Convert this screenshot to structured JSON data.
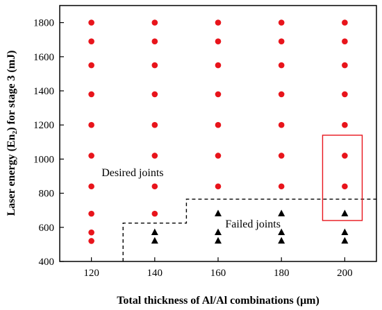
{
  "chart_data": {
    "type": "scatter",
    "xlabel": "Total thickness of Al/Al combinations (μm)",
    "ylabel": "Laser energy (En₂) for stage 3 (mJ)",
    "xlim": [
      110,
      210
    ],
    "ylim": [
      400,
      1900
    ],
    "xticks": [
      120,
      140,
      160,
      180,
      200
    ],
    "yticks": [
      400,
      600,
      800,
      1000,
      1200,
      1400,
      1600,
      1800
    ],
    "grid": false,
    "series": [
      {
        "marker": "circle",
        "color": "#e8141b",
        "points": [
          [
            120,
            1800
          ],
          [
            120,
            1690
          ],
          [
            120,
            1550
          ],
          [
            120,
            1380
          ],
          [
            120,
            1200
          ],
          [
            120,
            1020
          ],
          [
            120,
            840
          ],
          [
            120,
            680
          ],
          [
            120,
            570
          ],
          [
            120,
            520
          ],
          [
            140,
            1800
          ],
          [
            140,
            1690
          ],
          [
            140,
            1550
          ],
          [
            140,
            1380
          ],
          [
            140,
            1200
          ],
          [
            140,
            1020
          ],
          [
            140,
            840
          ],
          [
            140,
            680
          ],
          [
            160,
            1800
          ],
          [
            160,
            1690
          ],
          [
            160,
            1550
          ],
          [
            160,
            1380
          ],
          [
            160,
            1200
          ],
          [
            160,
            1020
          ],
          [
            160,
            840
          ],
          [
            180,
            1800
          ],
          [
            180,
            1690
          ],
          [
            180,
            1550
          ],
          [
            180,
            1380
          ],
          [
            180,
            1200
          ],
          [
            180,
            1020
          ],
          [
            180,
            840
          ],
          [
            200,
            1800
          ],
          [
            200,
            1690
          ],
          [
            200,
            1550
          ],
          [
            200,
            1380
          ],
          [
            200,
            1200
          ],
          [
            200,
            1020
          ],
          [
            200,
            840
          ]
        ]
      },
      {
        "marker": "triangle",
        "color": "#000000",
        "points": [
          [
            140,
            570
          ],
          [
            140,
            520
          ],
          [
            160,
            680
          ],
          [
            160,
            570
          ],
          [
            160,
            520
          ],
          [
            180,
            680
          ],
          [
            180,
            570
          ],
          [
            180,
            520
          ],
          [
            200,
            680
          ],
          [
            200,
            570
          ],
          [
            200,
            520
          ]
        ]
      }
    ],
    "boundary": {
      "style": "dashed",
      "color": "#000000",
      "points": [
        [
          130,
          400
        ],
        [
          130,
          625
        ],
        [
          150,
          625
        ],
        [
          150,
          765
        ],
        [
          210,
          765
        ]
      ]
    },
    "highlight_box": {
      "color": "#e8141b",
      "x": [
        193,
        205.5
      ],
      "y": [
        640,
        1140
      ]
    },
    "annotations": [
      {
        "text": "Desired joints",
        "x": 133,
        "y": 920
      },
      {
        "text": "Failed joints",
        "x": 171,
        "y": 620
      }
    ]
  }
}
